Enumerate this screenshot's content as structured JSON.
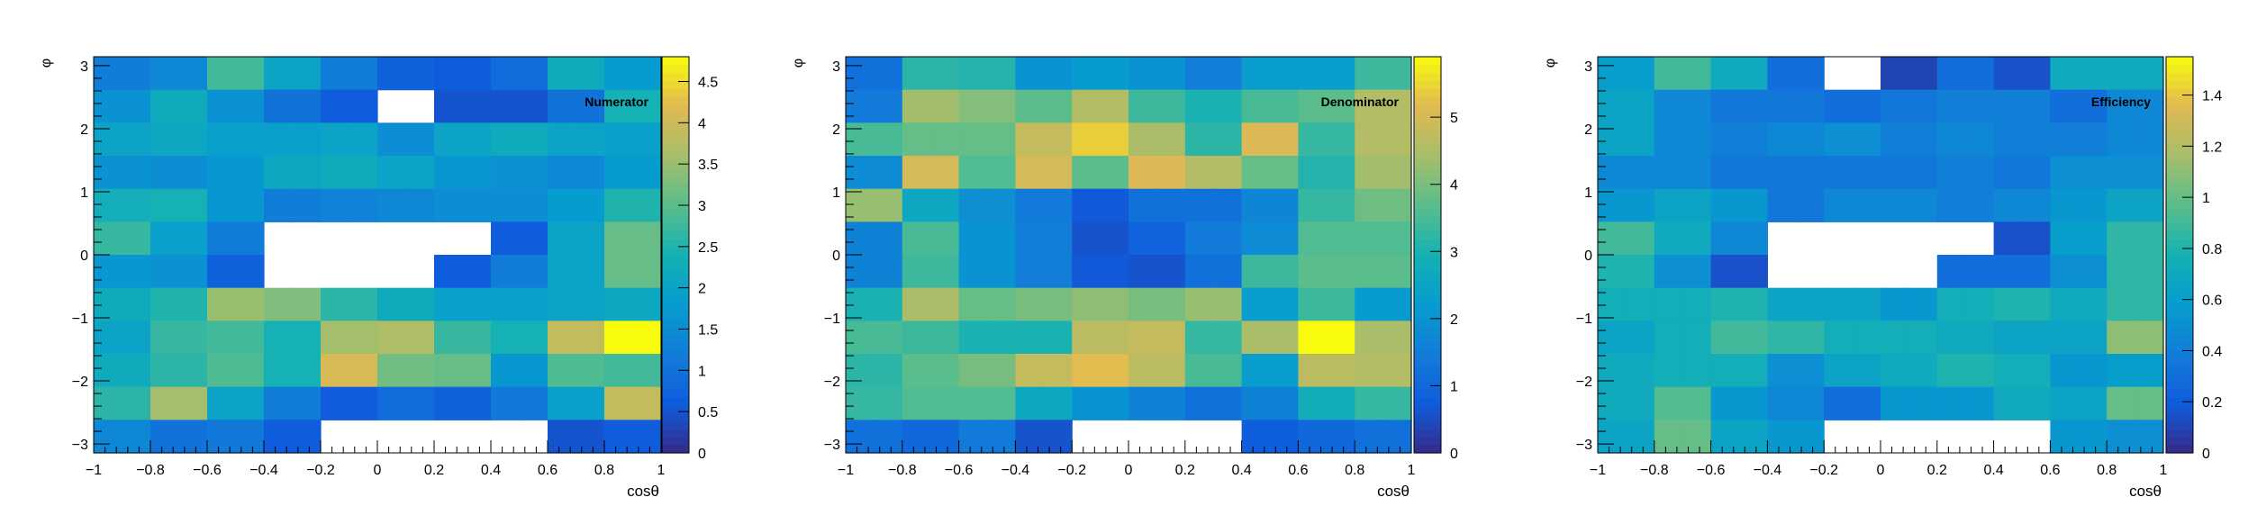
{
  "chart_data": [
    {
      "type": "heatmap",
      "title": "Numerator",
      "xlabel": "cosθ",
      "ylabel": "φ",
      "xlim": [
        -1,
        1
      ],
      "ylim": [
        -3.14159,
        3.14159
      ],
      "nx": 20,
      "ny": 12,
      "x_ticks": [
        -1,
        -0.8,
        -0.6,
        -0.4,
        -0.2,
        0,
        0.2,
        0.4,
        0.6,
        0.8,
        1
      ],
      "y_ticks": [
        -3,
        -2,
        -1,
        0,
        1,
        2,
        3
      ],
      "zlim": [
        0,
        4.8
      ],
      "z_ticks": [
        0,
        0.5,
        1,
        1.5,
        2,
        2.5,
        3,
        3.5,
        4,
        4.5
      ],
      "values": [
        [
          1.2,
          1.2,
          1.4,
          1.4,
          2.8,
          2.8,
          2.0,
          2.0,
          1.2,
          1.2,
          0.7,
          0.7,
          0.6,
          0.6,
          0.9,
          0.9,
          2.2,
          2.2,
          1.8,
          1.8
        ],
        [
          1.6,
          1.6,
          2.2,
          2.2,
          1.6,
          1.6,
          1.0,
          1.0,
          0.6,
          0.6,
          null,
          null,
          0.5,
          0.5,
          0.5,
          0.5,
          1.0,
          1.0,
          2.4,
          2.4
        ],
        [
          2.0,
          2.0,
          2.1,
          2.1,
          1.9,
          1.9,
          1.9,
          1.9,
          2.0,
          2.0,
          1.5,
          1.5,
          2.0,
          2.0,
          2.2,
          2.2,
          2.0,
          2.0,
          1.9,
          1.9
        ],
        [
          1.6,
          1.6,
          1.5,
          1.5,
          1.7,
          1.7,
          2.1,
          2.1,
          2.2,
          2.2,
          2.0,
          2.0,
          1.7,
          1.7,
          1.6,
          1.6,
          1.4,
          1.4,
          1.8,
          1.8
        ],
        [
          2.3,
          2.3,
          2.4,
          2.4,
          1.7,
          1.7,
          1.2,
          1.2,
          1.3,
          1.3,
          1.4,
          1.4,
          1.5,
          1.5,
          1.5,
          1.5,
          1.8,
          1.8,
          2.5,
          2.5
        ],
        [
          2.7,
          2.7,
          1.9,
          1.9,
          1.2,
          1.2,
          null,
          null,
          null,
          null,
          null,
          null,
          null,
          null,
          0.6,
          0.6,
          2.0,
          2.0,
          3.1,
          3.1
        ],
        [
          1.7,
          1.7,
          1.6,
          1.6,
          0.7,
          0.7,
          null,
          null,
          null,
          null,
          null,
          null,
          0.6,
          0.6,
          1.2,
          1.2,
          2.0,
          2.0,
          3.1,
          3.1
        ],
        [
          2.2,
          2.2,
          2.5,
          2.5,
          3.5,
          3.5,
          3.3,
          3.3,
          2.6,
          2.6,
          2.2,
          2.2,
          1.9,
          1.9,
          1.9,
          1.9,
          2.0,
          2.0,
          2.1,
          2.1
        ],
        [
          2.0,
          2.0,
          2.7,
          2.7,
          2.8,
          2.8,
          2.4,
          2.4,
          3.6,
          3.6,
          3.7,
          3.7,
          2.7,
          2.7,
          2.4,
          2.4,
          3.9,
          3.9,
          4.9,
          4.9
        ],
        [
          2.2,
          2.2,
          2.6,
          2.6,
          2.9,
          2.9,
          2.4,
          2.4,
          4.1,
          4.1,
          3.2,
          3.2,
          3.1,
          3.1,
          1.7,
          1.7,
          2.9,
          2.9,
          2.8,
          2.8
        ],
        [
          2.6,
          2.6,
          3.6,
          3.6,
          2.0,
          2.0,
          1.2,
          1.2,
          0.6,
          0.6,
          0.9,
          0.9,
          0.7,
          0.7,
          1.1,
          1.1,
          1.9,
          1.9,
          3.9,
          3.9
        ],
        [
          1.4,
          1.4,
          1.0,
          1.0,
          1.1,
          1.1,
          0.6,
          0.6,
          null,
          null,
          null,
          null,
          null,
          null,
          null,
          null,
          0.5,
          0.5,
          0.6,
          0.6
        ]
      ]
    },
    {
      "type": "heatmap",
      "title": "Denominator",
      "xlabel": "cosθ",
      "ylabel": "φ",
      "xlim": [
        -1,
        1
      ],
      "ylim": [
        -3.14159,
        3.14159
      ],
      "nx": 20,
      "ny": 12,
      "x_ticks": [
        -1,
        -0.8,
        -0.6,
        -0.4,
        -0.2,
        0,
        0.2,
        0.4,
        0.6,
        0.8,
        1
      ],
      "y_ticks": [
        -3,
        -2,
        -1,
        0,
        1,
        2,
        3
      ],
      "zlim": [
        0,
        5.9
      ],
      "z_ticks": [
        0,
        1,
        2,
        3,
        4,
        5
      ],
      "values": [
        [
          1.2,
          1.2,
          3.2,
          3.2,
          3.1,
          3.1,
          2.0,
          2.0,
          2.2,
          2.2,
          2.0,
          2.0,
          1.5,
          1.5,
          2.3,
          2.3,
          2.3,
          2.3,
          3.4,
          3.4
        ],
        [
          1.4,
          1.4,
          4.4,
          4.4,
          4.1,
          4.1,
          3.7,
          3.7,
          4.6,
          4.6,
          3.4,
          3.4,
          3.0,
          3.0,
          3.5,
          3.5,
          3.7,
          3.7,
          4.6,
          4.6
        ],
        [
          3.5,
          3.5,
          3.8,
          3.8,
          3.8,
          3.8,
          4.8,
          4.8,
          5.4,
          5.4,
          4.5,
          4.5,
          3.2,
          3.2,
          5.1,
          5.1,
          3.3,
          3.3,
          4.6,
          4.6
        ],
        [
          1.8,
          1.8,
          5.0,
          5.0,
          3.6,
          3.6,
          5.0,
          5.0,
          3.7,
          3.7,
          5.1,
          5.1,
          4.6,
          4.6,
          3.8,
          3.8,
          3.1,
          3.1,
          4.4,
          4.4
        ],
        [
          4.3,
          4.3,
          2.6,
          2.6,
          1.9,
          1.9,
          1.4,
          1.4,
          0.7,
          0.7,
          1.2,
          1.2,
          1.2,
          1.2,
          1.7,
          1.7,
          3.3,
          3.3,
          3.9,
          3.9
        ],
        [
          1.6,
          1.6,
          3.5,
          3.5,
          2.0,
          2.0,
          1.5,
          1.5,
          0.6,
          0.6,
          0.9,
          0.9,
          1.4,
          1.4,
          1.8,
          1.8,
          3.6,
          3.6,
          3.6,
          3.6
        ],
        [
          1.6,
          1.6,
          3.4,
          3.4,
          2.0,
          2.0,
          1.5,
          1.5,
          0.7,
          0.7,
          0.6,
          0.6,
          1.2,
          1.2,
          3.4,
          3.4,
          3.7,
          3.7,
          3.7,
          3.7
        ],
        [
          3.0,
          3.0,
          4.5,
          4.5,
          3.8,
          3.8,
          4.0,
          4.0,
          4.2,
          4.2,
          4.0,
          4.0,
          4.3,
          4.3,
          2.3,
          2.3,
          3.4,
          3.4,
          2.2,
          2.2
        ],
        [
          3.5,
          3.5,
          3.4,
          3.4,
          3.0,
          3.0,
          3.0,
          3.0,
          4.7,
          4.7,
          4.8,
          4.8,
          3.3,
          3.3,
          4.5,
          4.5,
          5.9,
          5.9,
          4.5,
          4.5
        ],
        [
          3.2,
          3.2,
          3.7,
          3.7,
          4.0,
          4.0,
          4.8,
          4.8,
          5.2,
          5.2,
          4.7,
          4.7,
          3.5,
          3.5,
          2.3,
          2.3,
          4.7,
          4.7,
          4.6,
          4.6
        ],
        [
          3.3,
          3.3,
          3.6,
          3.6,
          3.6,
          3.6,
          2.6,
          2.6,
          2.0,
          2.0,
          1.6,
          1.6,
          1.2,
          1.2,
          1.6,
          1.6,
          2.8,
          2.8,
          3.3,
          3.3
        ],
        [
          1.2,
          1.2,
          1.0,
          1.0,
          1.4,
          1.4,
          0.6,
          0.6,
          null,
          null,
          null,
          null,
          null,
          null,
          0.8,
          0.8,
          1.0,
          1.0,
          1.2,
          1.2
        ]
      ]
    },
    {
      "type": "heatmap",
      "title": "Efficiency",
      "xlabel": "cosθ",
      "ylabel": "φ",
      "xlim": [
        -1,
        1
      ],
      "ylim": [
        -3.14159,
        3.14159
      ],
      "nx": 20,
      "ny": 12,
      "x_ticks": [
        -1,
        -0.8,
        -0.6,
        -0.4,
        -0.2,
        0,
        0.2,
        0.4,
        0.6,
        0.8,
        1
      ],
      "y_ticks": [
        -3,
        -2,
        -1,
        0,
        1,
        2,
        3
      ],
      "zlim": [
        0,
        1.55
      ],
      "z_ticks": [
        0,
        0.2,
        0.4,
        0.6,
        0.8,
        1,
        1.2,
        1.4
      ],
      "values": [
        [
          0.6,
          0.6,
          0.9,
          0.9,
          0.7,
          0.7,
          0.3,
          0.3,
          null,
          null,
          0.1,
          0.1,
          0.3,
          0.3,
          0.15,
          0.15,
          0.7,
          0.7,
          0.7,
          0.7
        ],
        [
          0.65,
          0.65,
          0.45,
          0.45,
          0.35,
          0.35,
          0.35,
          0.35,
          0.3,
          0.3,
          0.35,
          0.35,
          0.4,
          0.4,
          0.4,
          0.4,
          0.3,
          0.3,
          0.45,
          0.45
        ],
        [
          0.65,
          0.65,
          0.45,
          0.45,
          0.4,
          0.4,
          0.45,
          0.45,
          0.5,
          0.5,
          0.4,
          0.4,
          0.45,
          0.45,
          0.4,
          0.4,
          0.4,
          0.4,
          0.45,
          0.45
        ],
        [
          0.45,
          0.45,
          0.45,
          0.45,
          0.35,
          0.35,
          0.35,
          0.35,
          0.35,
          0.35,
          0.35,
          0.35,
          0.4,
          0.4,
          0.35,
          0.35,
          0.5,
          0.5,
          0.5,
          0.5
        ],
        [
          0.55,
          0.55,
          0.65,
          0.65,
          0.55,
          0.55,
          0.35,
          0.35,
          0.45,
          0.45,
          0.45,
          0.45,
          0.4,
          0.4,
          0.45,
          0.45,
          0.55,
          0.55,
          0.65,
          0.65
        ],
        [
          0.9,
          0.9,
          0.7,
          0.7,
          0.45,
          0.45,
          null,
          null,
          null,
          null,
          null,
          null,
          null,
          null,
          0.15,
          0.15,
          0.6,
          0.6,
          0.85,
          0.85
        ],
        [
          0.8,
          0.8,
          0.5,
          0.5,
          0.15,
          0.15,
          null,
          null,
          null,
          null,
          null,
          null,
          0.3,
          0.3,
          0.3,
          0.3,
          0.5,
          0.5,
          0.85,
          0.85
        ],
        [
          0.75,
          0.75,
          0.75,
          0.75,
          0.8,
          0.8,
          0.65,
          0.65,
          0.65,
          0.65,
          0.55,
          0.55,
          0.75,
          0.75,
          0.8,
          0.8,
          0.7,
          0.7,
          0.85,
          0.85
        ],
        [
          0.65,
          0.65,
          0.75,
          0.75,
          0.9,
          0.9,
          0.85,
          0.85,
          0.75,
          0.75,
          0.75,
          0.75,
          0.7,
          0.7,
          0.65,
          0.65,
          0.65,
          0.65,
          1.1,
          1.1
        ],
        [
          0.7,
          0.7,
          0.75,
          0.75,
          0.75,
          0.75,
          0.5,
          0.5,
          0.65,
          0.65,
          0.7,
          0.7,
          0.8,
          0.8,
          0.75,
          0.75,
          0.55,
          0.55,
          0.6,
          0.6
        ],
        [
          0.7,
          0.7,
          0.95,
          0.95,
          0.55,
          0.55,
          0.45,
          0.45,
          0.3,
          0.3,
          0.55,
          0.55,
          0.55,
          0.55,
          0.7,
          0.7,
          0.65,
          0.65,
          1.0,
          1.0
        ],
        [
          0.65,
          0.65,
          1.0,
          1.0,
          0.65,
          0.65,
          0.55,
          0.55,
          null,
          null,
          null,
          null,
          null,
          null,
          null,
          null,
          0.55,
          0.55,
          0.5,
          0.5
        ]
      ]
    }
  ]
}
